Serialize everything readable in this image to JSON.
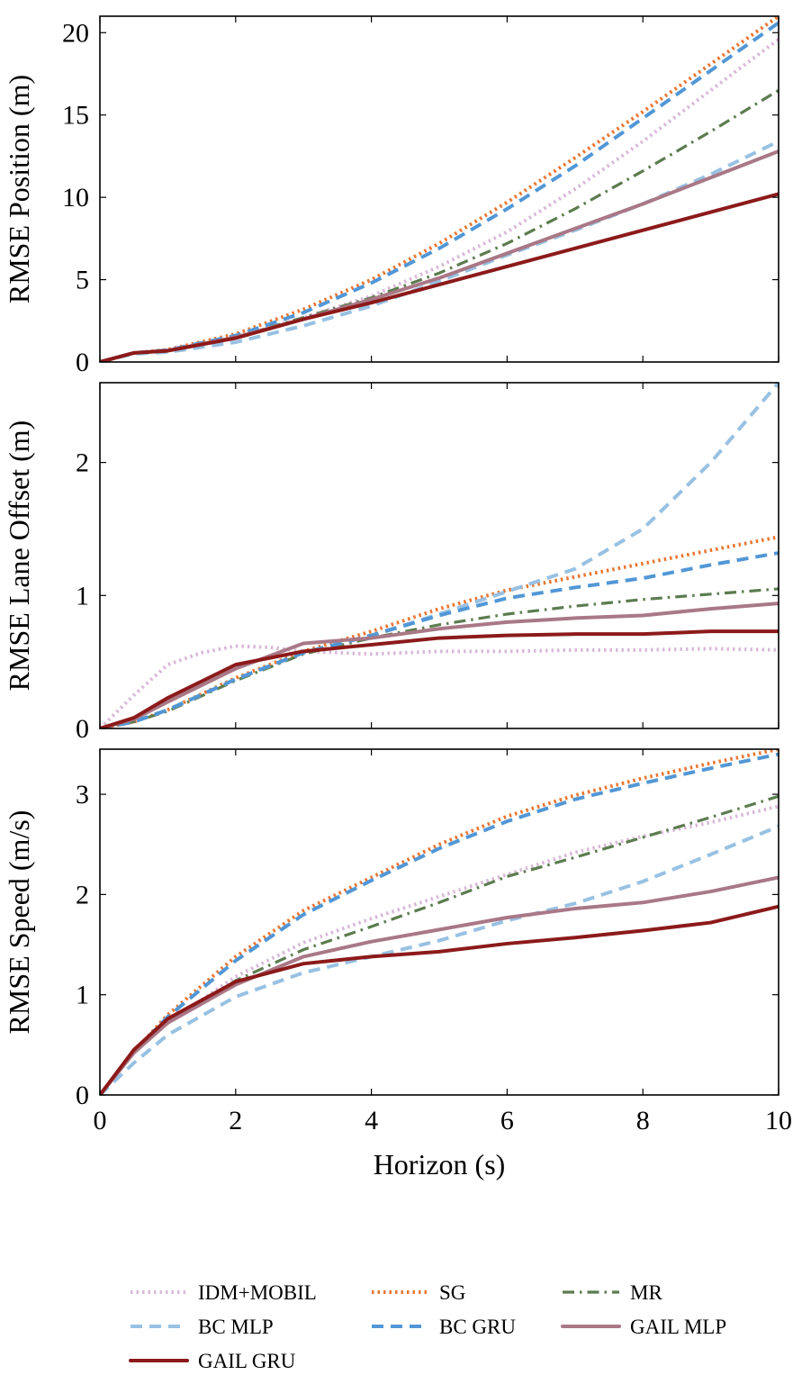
{
  "chart_data": [
    {
      "type": "line",
      "title": "",
      "xlabel": "",
      "ylabel": "RMSE Position (m)",
      "xlim": [
        0,
        10
      ],
      "ylim": [
        0,
        21
      ],
      "xticks": [
        0,
        2,
        4,
        6,
        8,
        10
      ],
      "yticks": [
        0,
        5,
        10,
        15,
        20
      ],
      "show_x_tick_labels": false,
      "series": [
        {
          "name": "IDM+MOBIL",
          "x": [
            0,
            0.5,
            1,
            2,
            3,
            4,
            5,
            6,
            7,
            8,
            9,
            10
          ],
          "values": [
            0,
            0.55,
            0.7,
            1.5,
            2.7,
            4.0,
            5.8,
            7.9,
            10.5,
            13.4,
            16.5,
            19.6
          ]
        },
        {
          "name": "SG",
          "x": [
            0,
            0.5,
            1,
            2,
            3,
            4,
            5,
            6,
            7,
            8,
            9,
            10
          ],
          "values": [
            0,
            0.55,
            0.75,
            1.7,
            3.2,
            5.0,
            7.2,
            9.7,
            12.4,
            15.2,
            18.1,
            21.0
          ]
        },
        {
          "name": "MR",
          "x": [
            0,
            0.5,
            1,
            2,
            3,
            4,
            5,
            6,
            7,
            8,
            9,
            10
          ],
          "values": [
            0,
            0.55,
            0.7,
            1.5,
            2.7,
            3.9,
            5.4,
            7.2,
            9.3,
            11.6,
            14.0,
            16.5
          ]
        },
        {
          "name": "BC MLP",
          "x": [
            0,
            0.5,
            1,
            2,
            3,
            4,
            5,
            6,
            7,
            8,
            9,
            10
          ],
          "values": [
            0,
            0.5,
            0.6,
            1.2,
            2.2,
            3.4,
            4.9,
            6.5,
            8.0,
            9.6,
            11.4,
            13.4
          ]
        },
        {
          "name": "BC GRU",
          "x": [
            0,
            0.5,
            1,
            2,
            3,
            4,
            5,
            6,
            7,
            8,
            9,
            10
          ],
          "values": [
            0,
            0.55,
            0.72,
            1.6,
            3.0,
            4.8,
            6.9,
            9.3,
            11.9,
            14.8,
            17.7,
            20.6
          ]
        },
        {
          "name": "GAIL MLP",
          "x": [
            0,
            0.5,
            1,
            2,
            3,
            4,
            5,
            6,
            7,
            8,
            9,
            10
          ],
          "values": [
            0,
            0.55,
            0.7,
            1.5,
            2.6,
            3.8,
            5.1,
            6.6,
            8.1,
            9.6,
            11.2,
            12.8
          ]
        },
        {
          "name": "GAIL GRU",
          "x": [
            0,
            0.5,
            1,
            2,
            3,
            4,
            5,
            6,
            7,
            8,
            9,
            10
          ],
          "values": [
            0,
            0.55,
            0.68,
            1.45,
            2.6,
            3.6,
            4.7,
            5.8,
            6.9,
            8.0,
            9.1,
            10.2
          ]
        }
      ]
    },
    {
      "type": "line",
      "title": "",
      "xlabel": "",
      "ylabel": "RMSE Lane Offset (m)",
      "xlim": [
        0,
        10
      ],
      "ylim": [
        0,
        2.6
      ],
      "xticks": [
        0,
        2,
        4,
        6,
        8,
        10
      ],
      "yticks": [
        0,
        1,
        2
      ],
      "show_x_tick_labels": false,
      "series": [
        {
          "name": "IDM+MOBIL",
          "x": [
            0,
            0.5,
            1,
            1.5,
            2,
            2.5,
            3,
            3.5,
            4,
            5,
            6,
            7,
            8,
            9,
            10
          ],
          "values": [
            0,
            0.25,
            0.48,
            0.57,
            0.62,
            0.61,
            0.58,
            0.57,
            0.56,
            0.58,
            0.58,
            0.59,
            0.59,
            0.6,
            0.59
          ]
        },
        {
          "name": "SG",
          "x": [
            0,
            0.5,
            1,
            2,
            3,
            4,
            5,
            6,
            7,
            8,
            9,
            10
          ],
          "values": [
            0,
            0.05,
            0.14,
            0.38,
            0.58,
            0.73,
            0.9,
            1.04,
            1.14,
            1.24,
            1.34,
            1.44
          ]
        },
        {
          "name": "MR",
          "x": [
            0,
            0.5,
            1,
            2,
            3,
            4,
            5,
            6,
            7,
            8,
            9,
            10
          ],
          "values": [
            0,
            0.05,
            0.13,
            0.36,
            0.56,
            0.68,
            0.78,
            0.86,
            0.92,
            0.97,
            1.01,
            1.05
          ]
        },
        {
          "name": "BC MLP",
          "x": [
            0,
            0.5,
            1,
            2,
            3,
            4,
            5,
            6,
            7,
            8,
            9,
            10
          ],
          "values": [
            0,
            0.05,
            0.14,
            0.37,
            0.57,
            0.7,
            0.86,
            1.03,
            1.2,
            1.5,
            2.0,
            2.6
          ]
        },
        {
          "name": "BC GRU",
          "x": [
            0,
            0.5,
            1,
            2,
            3,
            4,
            5,
            6,
            7,
            8,
            9,
            10
          ],
          "values": [
            0,
            0.05,
            0.14,
            0.37,
            0.57,
            0.7,
            0.85,
            0.98,
            1.06,
            1.13,
            1.23,
            1.32
          ]
        },
        {
          "name": "GAIL MLP",
          "x": [
            0,
            0.5,
            1,
            2,
            3,
            4,
            5,
            6,
            7,
            8,
            9,
            10
          ],
          "values": [
            0,
            0.07,
            0.2,
            0.45,
            0.64,
            0.68,
            0.75,
            0.8,
            0.83,
            0.85,
            0.9,
            0.94
          ]
        },
        {
          "name": "GAIL GRU",
          "x": [
            0,
            0.5,
            1,
            2,
            3,
            4,
            5,
            6,
            7,
            8,
            9,
            10
          ],
          "values": [
            0,
            0.08,
            0.23,
            0.48,
            0.58,
            0.63,
            0.68,
            0.7,
            0.71,
            0.71,
            0.73,
            0.73
          ]
        }
      ]
    },
    {
      "type": "line",
      "title": "",
      "xlabel": "Horizon (s)",
      "ylabel": "RMSE Speed (m/s)",
      "xlim": [
        0,
        10
      ],
      "ylim": [
        0,
        3.45
      ],
      "xticks": [
        0,
        2,
        4,
        6,
        8,
        10
      ],
      "yticks": [
        0,
        1,
        2,
        3
      ],
      "show_x_tick_labels": true,
      "series": [
        {
          "name": "IDM+MOBIL",
          "x": [
            0,
            0.5,
            1,
            2,
            3,
            4,
            5,
            6,
            7,
            8,
            9,
            10
          ],
          "values": [
            0,
            0.43,
            0.72,
            1.18,
            1.52,
            1.76,
            1.98,
            2.2,
            2.42,
            2.58,
            2.72,
            2.88
          ]
        },
        {
          "name": "SG",
          "x": [
            0,
            0.5,
            1,
            2,
            3,
            4,
            5,
            6,
            7,
            8,
            9,
            10
          ],
          "values": [
            0,
            0.43,
            0.8,
            1.38,
            1.84,
            2.17,
            2.5,
            2.78,
            2.99,
            3.16,
            3.31,
            3.45
          ]
        },
        {
          "name": "MR",
          "x": [
            0,
            0.5,
            1,
            2,
            3,
            4,
            5,
            6,
            7,
            8,
            9,
            10
          ],
          "values": [
            0,
            0.42,
            0.72,
            1.14,
            1.45,
            1.68,
            1.92,
            2.18,
            2.37,
            2.57,
            2.77,
            2.98
          ]
        },
        {
          "name": "BC MLP",
          "x": [
            0,
            0.5,
            1,
            2,
            3,
            4,
            5,
            6,
            7,
            8,
            9,
            10
          ],
          "values": [
            0,
            0.32,
            0.6,
            0.98,
            1.22,
            1.38,
            1.54,
            1.74,
            1.91,
            2.13,
            2.4,
            2.68
          ]
        },
        {
          "name": "BC GRU",
          "x": [
            0,
            0.5,
            1,
            2,
            3,
            4,
            5,
            6,
            7,
            8,
            9,
            10
          ],
          "values": [
            0,
            0.43,
            0.78,
            1.34,
            1.8,
            2.14,
            2.46,
            2.73,
            2.95,
            3.11,
            3.26,
            3.4
          ]
        },
        {
          "name": "GAIL MLP",
          "x": [
            0,
            0.5,
            1,
            2,
            3,
            4,
            5,
            6,
            7,
            8,
            9,
            10
          ],
          "values": [
            0,
            0.42,
            0.72,
            1.1,
            1.38,
            1.53,
            1.65,
            1.77,
            1.86,
            1.92,
            2.03,
            2.17
          ]
        },
        {
          "name": "GAIL GRU",
          "x": [
            0,
            0.5,
            1,
            2,
            3,
            4,
            5,
            6,
            7,
            8,
            9,
            10
          ],
          "values": [
            0,
            0.45,
            0.76,
            1.13,
            1.31,
            1.38,
            1.43,
            1.51,
            1.57,
            1.64,
            1.72,
            1.88
          ]
        }
      ]
    }
  ],
  "legend": {
    "position": "bottom",
    "items": [
      {
        "name": "IDM+MOBIL",
        "color": "#d8b9d8",
        "style": "dotted"
      },
      {
        "name": "SG",
        "color": "#ea7530",
        "style": "dotted"
      },
      {
        "name": "MR",
        "color": "#5c7c4f",
        "style": "dashdot"
      },
      {
        "name": "BC MLP",
        "color": "#98c1e2",
        "style": "dashed"
      },
      {
        "name": "BC GRU",
        "color": "#5297d6",
        "style": "dashed"
      },
      {
        "name": "GAIL MLP",
        "color": "#a97887",
        "style": "solid"
      },
      {
        "name": "GAIL GRU",
        "color": "#8c1a1a",
        "style": "solid"
      }
    ]
  }
}
